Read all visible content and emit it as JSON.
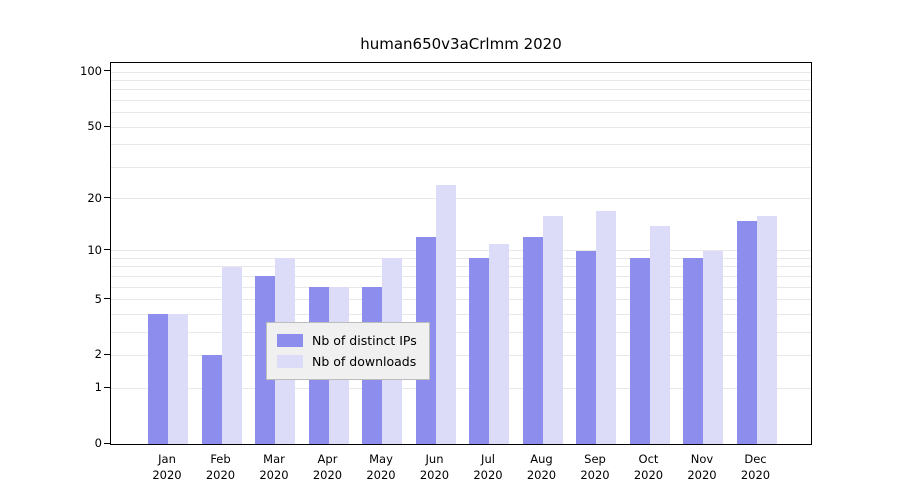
{
  "chart_data": {
    "type": "bar",
    "title": "human650v3aCrlmm 2020",
    "categories": [
      "Jan",
      "Feb",
      "Mar",
      "Apr",
      "May",
      "Jun",
      "Jul",
      "Aug",
      "Sep",
      "Oct",
      "Nov",
      "Dec"
    ],
    "x_year": "2020",
    "series": [
      {
        "name": "Nb of distinct IPs",
        "color": "#8d8dee",
        "values": [
          4,
          2,
          7,
          6,
          6,
          12,
          9,
          12,
          10,
          9,
          9,
          15
        ]
      },
      {
        "name": "Nb of downloads",
        "color": "#dcdcf9",
        "values": [
          4,
          8,
          9,
          6,
          9,
          24,
          11,
          16,
          17,
          14,
          10,
          16
        ]
      }
    ],
    "y_axis": {
      "scale": "log1p",
      "ticks": [
        0,
        1,
        2,
        5,
        10,
        20,
        50,
        100
      ],
      "gridlines": [
        1,
        2,
        3,
        4,
        5,
        6,
        7,
        8,
        9,
        10,
        20,
        30,
        40,
        50,
        60,
        70,
        80,
        90,
        100
      ],
      "range_max": 100
    },
    "legend": {
      "position": "bottom-center"
    },
    "grid": true,
    "colors": {
      "axis": "#000000",
      "gridline": "#e8e8e8",
      "background": "#ffffff",
      "legend_bg": "#f0f0f0"
    }
  }
}
